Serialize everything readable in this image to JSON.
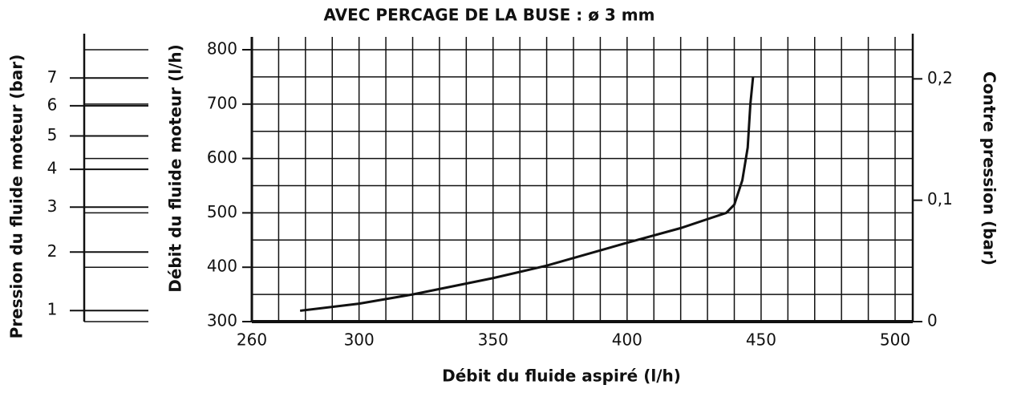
{
  "chart_data": {
    "type": "line",
    "title": "AVEC PERCAGE DE LA BUSE : ø 3 mm",
    "xlabel": "Débit du fluide aspiré (l/h)",
    "ylabel": "Débit du fluide moteur (l/h)",
    "y2label": "Contre pression (bar)",
    "y3label": "Pression du fluide moteur (bar)",
    "x": [
      278,
      300,
      320,
      350,
      370,
      400,
      420,
      437,
      440,
      443,
      445,
      446,
      447
    ],
    "series": [
      {
        "name": "Débit du fluide moteur",
        "color": "#111111",
        "values": [
          320,
          333,
          350,
          380,
          403,
          445,
          472,
          500,
          515,
          560,
          620,
          700,
          750
        ]
      }
    ],
    "xlim": [
      260,
      500
    ],
    "xticks": [
      260,
      300,
      350,
      400,
      450,
      500
    ],
    "ylim": [
      300,
      800
    ],
    "yticks": [
      300,
      400,
      500,
      600,
      700,
      800
    ],
    "y2lim": [
      0,
      0.224
    ],
    "y2ticks": [
      0,
      {
        "value": 0.1,
        "label": "0,1"
      },
      {
        "value": 0.2,
        "label": "0,2"
      }
    ],
    "y3lim": [
      0.85,
      8.1
    ],
    "y3scale": "sqrt",
    "y3ticks": [
      1,
      2,
      3,
      4,
      5,
      6,
      7
    ],
    "grid": true,
    "grid_step": {
      "x": 10,
      "y": 50
    }
  }
}
